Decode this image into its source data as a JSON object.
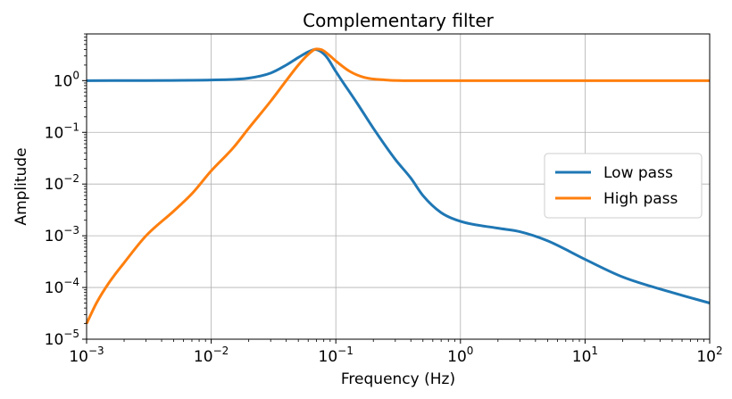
{
  "chart_data": {
    "type": "line",
    "title": "Complementary filter",
    "xlabel": "Frequency (Hz)",
    "ylabel": "Amplitude",
    "xscale": "log",
    "yscale": "log",
    "xlim": [
      0.001,
      100
    ],
    "ylim": [
      1e-05,
      8
    ],
    "grid": true,
    "legend_position": "center-right",
    "x_ticks": [
      {
        "value": 0.001,
        "base": "10",
        "exp": "−3"
      },
      {
        "value": 0.01,
        "base": "10",
        "exp": "−2"
      },
      {
        "value": 0.1,
        "base": "10",
        "exp": "−1"
      },
      {
        "value": 1,
        "base": "10",
        "exp": "0"
      },
      {
        "value": 10,
        "base": "10",
        "exp": "1"
      },
      {
        "value": 100,
        "base": "10",
        "exp": "2"
      }
    ],
    "y_ticks": [
      {
        "value": 1,
        "base": "10",
        "exp": "0"
      },
      {
        "value": 0.1,
        "base": "10",
        "exp": "−1"
      },
      {
        "value": 0.01,
        "base": "10",
        "exp": "−2"
      },
      {
        "value": 0.001,
        "base": "10",
        "exp": "−3"
      },
      {
        "value": 0.0001,
        "base": "10",
        "exp": "−4"
      },
      {
        "value": 1e-05,
        "base": "10",
        "exp": "−5"
      }
    ],
    "series": [
      {
        "name": "Low pass",
        "color": "#1f77b4",
        "points": [
          [
            0.001,
            1.0
          ],
          [
            0.01,
            1.03
          ],
          [
            0.02,
            1.12
          ],
          [
            0.03,
            1.4
          ],
          [
            0.04,
            2.0
          ],
          [
            0.05,
            2.8
          ],
          [
            0.06,
            3.6
          ],
          [
            0.068,
            4.0
          ],
          [
            0.075,
            3.7
          ],
          [
            0.085,
            2.8
          ],
          [
            0.1,
            1.5
          ],
          [
            0.15,
            0.35
          ],
          [
            0.2,
            0.12
          ],
          [
            0.3,
            0.03
          ],
          [
            0.4,
            0.013
          ],
          [
            0.5,
            0.006
          ],
          [
            0.7,
            0.0028
          ],
          [
            1.0,
            0.0019
          ],
          [
            2.0,
            0.0014
          ],
          [
            3.0,
            0.0012
          ],
          [
            5.0,
            0.0008
          ],
          [
            10.0,
            0.00035
          ],
          [
            20.0,
            0.00016
          ],
          [
            50.0,
            8e-05
          ],
          [
            100.0,
            5e-05
          ]
        ]
      },
      {
        "name": "High pass",
        "color": "#ff7f0e",
        "points": [
          [
            0.001,
            2e-05
          ],
          [
            0.0012,
            5e-05
          ],
          [
            0.0015,
            0.00012
          ],
          [
            0.002,
            0.0003
          ],
          [
            0.003,
            0.001
          ],
          [
            0.005,
            0.003
          ],
          [
            0.007,
            0.0065
          ],
          [
            0.01,
            0.018
          ],
          [
            0.015,
            0.05
          ],
          [
            0.02,
            0.12
          ],
          [
            0.03,
            0.4
          ],
          [
            0.04,
            1.0
          ],
          [
            0.05,
            2.0
          ],
          [
            0.06,
            3.2
          ],
          [
            0.07,
            4.1
          ],
          [
            0.078,
            3.9
          ],
          [
            0.09,
            3.0
          ],
          [
            0.1,
            2.4
          ],
          [
            0.13,
            1.5
          ],
          [
            0.17,
            1.15
          ],
          [
            0.25,
            1.03
          ],
          [
            0.4,
            1.0
          ],
          [
            1.0,
            1.0
          ],
          [
            10.0,
            1.0
          ],
          [
            100.0,
            1.0
          ]
        ]
      }
    ]
  }
}
